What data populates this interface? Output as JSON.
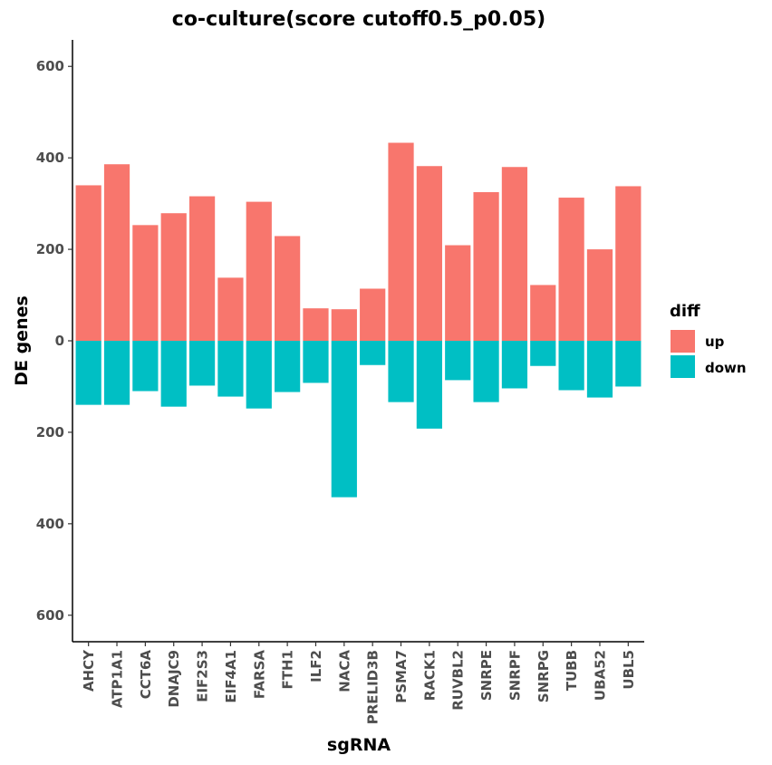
{
  "chart_data": {
    "type": "bar",
    "stacked": "diverging",
    "title": "co-culture(score cutoff0.5_p0.05)",
    "xlabel": "sgRNA",
    "ylabel": "DE genes",
    "ylim": [
      -660,
      660
    ],
    "yticks": [
      -600,
      -400,
      -200,
      0,
      200,
      400,
      600
    ],
    "ytick_labels": [
      "600",
      "400",
      "200",
      "0",
      "200",
      "400",
      "600"
    ],
    "categories": [
      "AHCY",
      "ATP1A1",
      "CCT6A",
      "DNAJC9",
      "EIF2S3",
      "EIF4A1",
      "FARSA",
      "FTH1",
      "ILF2",
      "NACA",
      "PRELID3B",
      "PSMA7",
      "RACK1",
      "RUVBL2",
      "SNRPE",
      "SNRPF",
      "SNRPG",
      "TUBB",
      "UBA52",
      "UBL5"
    ],
    "series": [
      {
        "name": "up",
        "color": "#F8766D",
        "values": [
          340,
          386,
          253,
          279,
          316,
          138,
          304,
          229,
          71,
          69,
          114,
          433,
          382,
          209,
          325,
          380,
          122,
          313,
          200,
          338
        ]
      },
      {
        "name": "down",
        "color": "#00BFC4",
        "values": [
          -140,
          -140,
          -110,
          -144,
          -98,
          -122,
          -148,
          -112,
          -92,
          -342,
          -53,
          -134,
          -192,
          -86,
          -134,
          -104,
          -55,
          -108,
          -124,
          -100
        ]
      }
    ],
    "legend": {
      "title": "diff",
      "position": "right",
      "labels": [
        "up",
        "down"
      ]
    },
    "grid": false
  }
}
